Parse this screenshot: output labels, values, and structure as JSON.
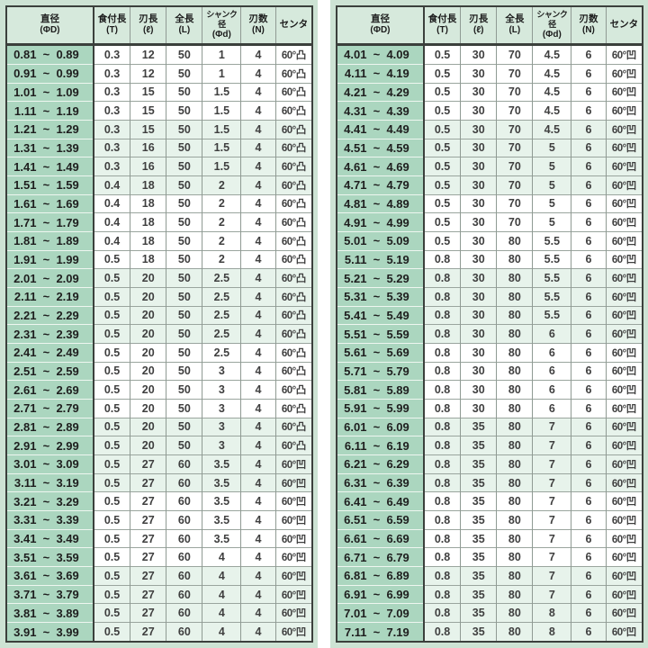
{
  "columns": [
    {
      "line1": "直径",
      "line2": "(ΦD)"
    },
    {
      "line1": "食付長",
      "line2": "(T)"
    },
    {
      "line1": "刃長",
      "line2": "(ℓ)"
    },
    {
      "line1": "全長",
      "line2": "(L)"
    },
    {
      "line1": "シャンク径",
      "line2": "(Φd)"
    },
    {
      "line1": "刃数",
      "line2": "(N)"
    },
    {
      "line1": "センタ",
      "line2": ""
    }
  ],
  "range_separator": "~",
  "colors": {
    "panel_green": "#cde3d4",
    "header_green": "#d6e9dc",
    "diameter_column_green": "#abd6bf",
    "band_row_green": "#e7f3eb",
    "border_dark": "#3b403c",
    "grid_gray": "#8f9a93"
  },
  "tables": [
    {
      "id": "left",
      "rows": [
        [
          "0.81",
          "0.89",
          "0.3",
          "12",
          "50",
          "1",
          "4",
          "60°凸"
        ],
        [
          "0.91",
          "0.99",
          "0.3",
          "12",
          "50",
          "1",
          "4",
          "60°凸"
        ],
        [
          "1.01",
          "1.09",
          "0.3",
          "15",
          "50",
          "1.5",
          "4",
          "60°凸"
        ],
        [
          "1.11",
          "1.19",
          "0.3",
          "15",
          "50",
          "1.5",
          "4",
          "60°凸"
        ],
        [
          "1.21",
          "1.29",
          "0.3",
          "15",
          "50",
          "1.5",
          "4",
          "60°凸"
        ],
        [
          "1.31",
          "1.39",
          "0.3",
          "16",
          "50",
          "1.5",
          "4",
          "60°凸"
        ],
        [
          "1.41",
          "1.49",
          "0.3",
          "16",
          "50",
          "1.5",
          "4",
          "60°凸"
        ],
        [
          "1.51",
          "1.59",
          "0.4",
          "18",
          "50",
          "2",
          "4",
          "60°凸"
        ],
        [
          "1.61",
          "1.69",
          "0.4",
          "18",
          "50",
          "2",
          "4",
          "60°凸"
        ],
        [
          "1.71",
          "1.79",
          "0.4",
          "18",
          "50",
          "2",
          "4",
          "60°凸"
        ],
        [
          "1.81",
          "1.89",
          "0.4",
          "18",
          "50",
          "2",
          "4",
          "60°凸"
        ],
        [
          "1.91",
          "1.99",
          "0.5",
          "18",
          "50",
          "2",
          "4",
          "60°凸"
        ],
        [
          "2.01",
          "2.09",
          "0.5",
          "20",
          "50",
          "2.5",
          "4",
          "60°凸"
        ],
        [
          "2.11",
          "2.19",
          "0.5",
          "20",
          "50",
          "2.5",
          "4",
          "60°凸"
        ],
        [
          "2.21",
          "2.29",
          "0.5",
          "20",
          "50",
          "2.5",
          "4",
          "60°凸"
        ],
        [
          "2.31",
          "2.39",
          "0.5",
          "20",
          "50",
          "2.5",
          "4",
          "60°凸"
        ],
        [
          "2.41",
          "2.49",
          "0.5",
          "20",
          "50",
          "2.5",
          "4",
          "60°凸"
        ],
        [
          "2.51",
          "2.59",
          "0.5",
          "20",
          "50",
          "3",
          "4",
          "60°凸"
        ],
        [
          "2.61",
          "2.69",
          "0.5",
          "20",
          "50",
          "3",
          "4",
          "60°凸"
        ],
        [
          "2.71",
          "2.79",
          "0.5",
          "20",
          "50",
          "3",
          "4",
          "60°凸"
        ],
        [
          "2.81",
          "2.89",
          "0.5",
          "20",
          "50",
          "3",
          "4",
          "60°凸"
        ],
        [
          "2.91",
          "2.99",
          "0.5",
          "20",
          "50",
          "3",
          "4",
          "60°凸"
        ],
        [
          "3.01",
          "3.09",
          "0.5",
          "27",
          "60",
          "3.5",
          "4",
          "60°凹"
        ],
        [
          "3.11",
          "3.19",
          "0.5",
          "27",
          "60",
          "3.5",
          "4",
          "60°凹"
        ],
        [
          "3.21",
          "3.29",
          "0.5",
          "27",
          "60",
          "3.5",
          "4",
          "60°凹"
        ],
        [
          "3.31",
          "3.39",
          "0.5",
          "27",
          "60",
          "3.5",
          "4",
          "60°凹"
        ],
        [
          "3.41",
          "3.49",
          "0.5",
          "27",
          "60",
          "3.5",
          "4",
          "60°凹"
        ],
        [
          "3.51",
          "3.59",
          "0.5",
          "27",
          "60",
          "4",
          "4",
          "60°凹"
        ],
        [
          "3.61",
          "3.69",
          "0.5",
          "27",
          "60",
          "4",
          "4",
          "60°凹"
        ],
        [
          "3.71",
          "3.79",
          "0.5",
          "27",
          "60",
          "4",
          "4",
          "60°凹"
        ],
        [
          "3.81",
          "3.89",
          "0.5",
          "27",
          "60",
          "4",
          "4",
          "60°凹"
        ],
        [
          "3.91",
          "3.99",
          "0.5",
          "27",
          "60",
          "4",
          "4",
          "60°凹"
        ]
      ]
    },
    {
      "id": "right",
      "rows": [
        [
          "4.01",
          "4.09",
          "0.5",
          "30",
          "70",
          "4.5",
          "6",
          "60°凹"
        ],
        [
          "4.11",
          "4.19",
          "0.5",
          "30",
          "70",
          "4.5",
          "6",
          "60°凹"
        ],
        [
          "4.21",
          "4.29",
          "0.5",
          "30",
          "70",
          "4.5",
          "6",
          "60°凹"
        ],
        [
          "4.31",
          "4.39",
          "0.5",
          "30",
          "70",
          "4.5",
          "6",
          "60°凹"
        ],
        [
          "4.41",
          "4.49",
          "0.5",
          "30",
          "70",
          "4.5",
          "6",
          "60°凹"
        ],
        [
          "4.51",
          "4.59",
          "0.5",
          "30",
          "70",
          "5",
          "6",
          "60°凹"
        ],
        [
          "4.61",
          "4.69",
          "0.5",
          "30",
          "70",
          "5",
          "6",
          "60°凹"
        ],
        [
          "4.71",
          "4.79",
          "0.5",
          "30",
          "70",
          "5",
          "6",
          "60°凹"
        ],
        [
          "4.81",
          "4.89",
          "0.5",
          "30",
          "70",
          "5",
          "6",
          "60°凹"
        ],
        [
          "4.91",
          "4.99",
          "0.5",
          "30",
          "70",
          "5",
          "6",
          "60°凹"
        ],
        [
          "5.01",
          "5.09",
          "0.5",
          "30",
          "80",
          "5.5",
          "6",
          "60°凹"
        ],
        [
          "5.11",
          "5.19",
          "0.8",
          "30",
          "80",
          "5.5",
          "6",
          "60°凹"
        ],
        [
          "5.21",
          "5.29",
          "0.8",
          "30",
          "80",
          "5.5",
          "6",
          "60°凹"
        ],
        [
          "5.31",
          "5.39",
          "0.8",
          "30",
          "80",
          "5.5",
          "6",
          "60°凹"
        ],
        [
          "5.41",
          "5.49",
          "0.8",
          "30",
          "80",
          "5.5",
          "6",
          "60°凹"
        ],
        [
          "5.51",
          "5.59",
          "0.8",
          "30",
          "80",
          "6",
          "6",
          "60°凹"
        ],
        [
          "5.61",
          "5.69",
          "0.8",
          "30",
          "80",
          "6",
          "6",
          "60°凹"
        ],
        [
          "5.71",
          "5.79",
          "0.8",
          "30",
          "80",
          "6",
          "6",
          "60°凹"
        ],
        [
          "5.81",
          "5.89",
          "0.8",
          "30",
          "80",
          "6",
          "6",
          "60°凹"
        ],
        [
          "5.91",
          "5.99",
          "0.8",
          "30",
          "80",
          "6",
          "6",
          "60°凹"
        ],
        [
          "6.01",
          "6.09",
          "0.8",
          "35",
          "80",
          "7",
          "6",
          "60°凹"
        ],
        [
          "6.11",
          "6.19",
          "0.8",
          "35",
          "80",
          "7",
          "6",
          "60°凹"
        ],
        [
          "6.21",
          "6.29",
          "0.8",
          "35",
          "80",
          "7",
          "6",
          "60°凹"
        ],
        [
          "6.31",
          "6.39",
          "0.8",
          "35",
          "80",
          "7",
          "6",
          "60°凹"
        ],
        [
          "6.41",
          "6.49",
          "0.8",
          "35",
          "80",
          "7",
          "6",
          "60°凹"
        ],
        [
          "6.51",
          "6.59",
          "0.8",
          "35",
          "80",
          "7",
          "6",
          "60°凹"
        ],
        [
          "6.61",
          "6.69",
          "0.8",
          "35",
          "80",
          "7",
          "6",
          "60°凹"
        ],
        [
          "6.71",
          "6.79",
          "0.8",
          "35",
          "80",
          "7",
          "6",
          "60°凹"
        ],
        [
          "6.81",
          "6.89",
          "0.8",
          "35",
          "80",
          "7",
          "6",
          "60°凹"
        ],
        [
          "6.91",
          "6.99",
          "0.8",
          "35",
          "80",
          "7",
          "6",
          "60°凹"
        ],
        [
          "7.01",
          "7.09",
          "0.8",
          "35",
          "80",
          "8",
          "6",
          "60°凹"
        ],
        [
          "7.11",
          "7.19",
          "0.8",
          "35",
          "80",
          "8",
          "6",
          "60°凹"
        ]
      ]
    }
  ]
}
